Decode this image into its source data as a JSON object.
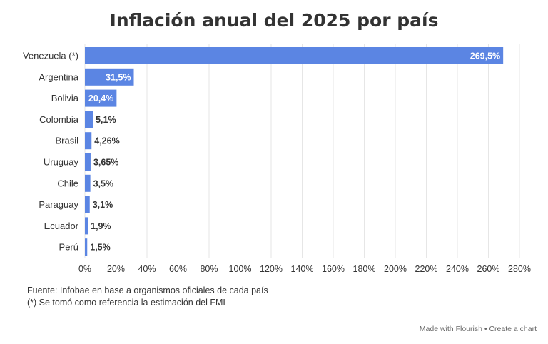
{
  "title": "Inflación anual del 2025 por país",
  "chart_data": {
    "type": "bar",
    "orientation": "horizontal",
    "categories": [
      "Venezuela (*)",
      "Argentina",
      "Bolivia",
      "Colombia",
      "Brasil",
      "Uruguay",
      "Chile",
      "Paraguay",
      "Ecuador",
      "Perú"
    ],
    "values": [
      269.5,
      31.5,
      20.4,
      5.1,
      4.26,
      3.65,
      3.5,
      3.1,
      1.9,
      1.5
    ],
    "value_labels": [
      "269,5%",
      "31,5%",
      "20,4%",
      "5,1%",
      "4,26%",
      "3,65%",
      "3,5%",
      "3,1%",
      "1,9%",
      "1,5%"
    ],
    "xlim": [
      0,
      280
    ],
    "x_ticks": [
      "0%",
      "20%",
      "40%",
      "60%",
      "80%",
      "100%",
      "120%",
      "140%",
      "160%",
      "180%",
      "200%",
      "220%",
      "240%",
      "260%",
      "280%"
    ],
    "bar_color": "#5b85e3",
    "grid": true,
    "xlabel": "",
    "ylabel": ""
  },
  "source": {
    "line1": "Fuente: Infobae en base a organismos oficiales de cada país",
    "line2": "(*) Se tomó como referencia la estimación del FMI"
  },
  "footer": {
    "made_with": "Made with Flourish",
    "separator": "•",
    "create": "Create a chart"
  }
}
